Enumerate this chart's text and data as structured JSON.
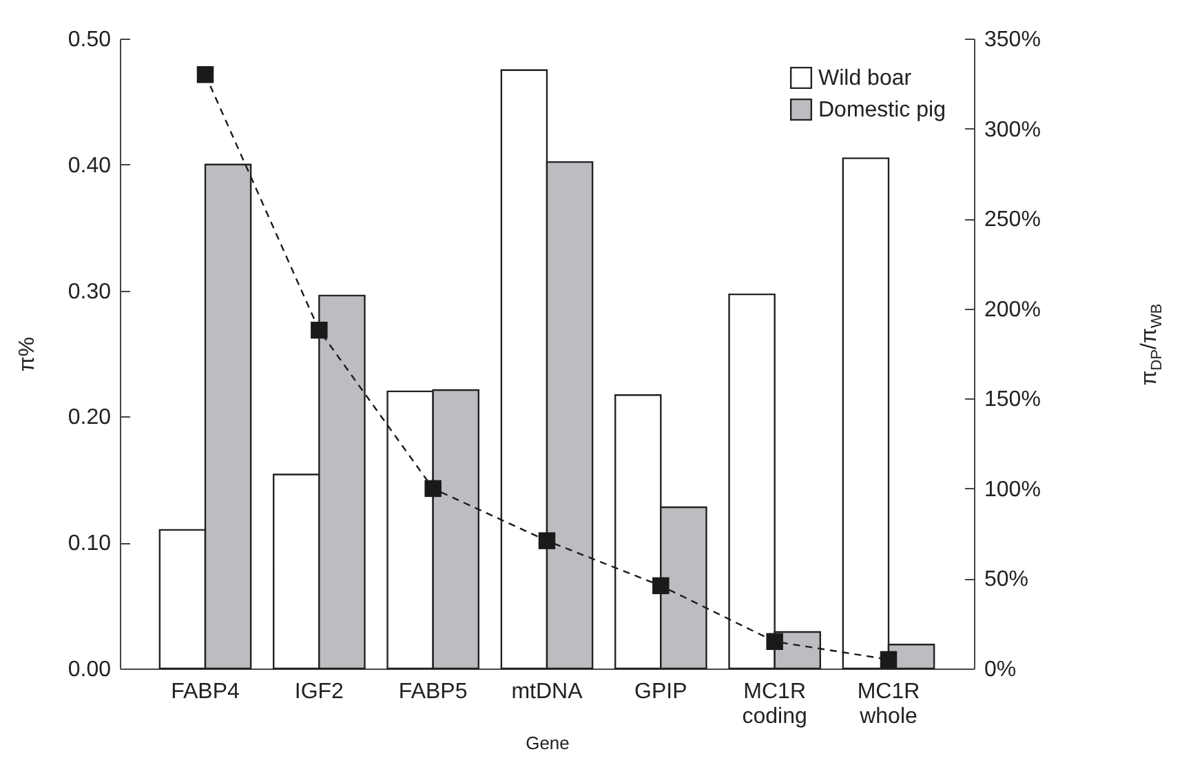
{
  "chart_data": {
    "type": "bar",
    "xlabel": "Gene",
    "ylabel": "π%",
    "y2label": "π$_{DP}$/π$_{WB}$",
    "categories": [
      "FABP4",
      "IGF2",
      "FABP5",
      "mtDNA",
      "GPIP",
      "MC1R coding",
      "MC1R whole"
    ],
    "series": [
      {
        "name": "Wild boar",
        "type": "bar",
        "color": "#ffffff",
        "values": [
          0.11,
          0.154,
          0.22,
          0.475,
          0.217,
          0.297,
          0.405
        ]
      },
      {
        "name": "Domestic pig",
        "type": "bar",
        "color": "#bcbdc0",
        "values": [
          0.4,
          0.296,
          0.221,
          0.402,
          0.128,
          0.029,
          0.019
        ]
      },
      {
        "type": "line",
        "axis": "y2",
        "color": "#1a1a1a",
        "line_style": "dashed",
        "marker": "square",
        "values": [
          330,
          188,
          100,
          71,
          46,
          15,
          5
        ]
      }
    ],
    "ylim": [
      0,
      0.5
    ],
    "yticks": [
      {
        "value": 0,
        "label": "0.00"
      },
      {
        "value": 0.1,
        "label": "0.10"
      },
      {
        "value": 0.2,
        "label": "0.20"
      },
      {
        "value": 0.3,
        "label": "0.30"
      },
      {
        "value": 0.4,
        "label": "0.40"
      },
      {
        "value": 0.5,
        "label": "0.50"
      }
    ],
    "y2lim": [
      0,
      350
    ],
    "y2ticks": [
      {
        "value": 0,
        "label": "0%"
      },
      {
        "value": 50,
        "label": "50%"
      },
      {
        "value": 100,
        "label": "100%"
      },
      {
        "value": 150,
        "label": "150%"
      },
      {
        "value": 200,
        "label": "200%"
      },
      {
        "value": 250,
        "label": "250%"
      },
      {
        "value": 300,
        "label": "300%"
      },
      {
        "value": 350,
        "label": "350%"
      }
    ],
    "legend": "top right"
  }
}
